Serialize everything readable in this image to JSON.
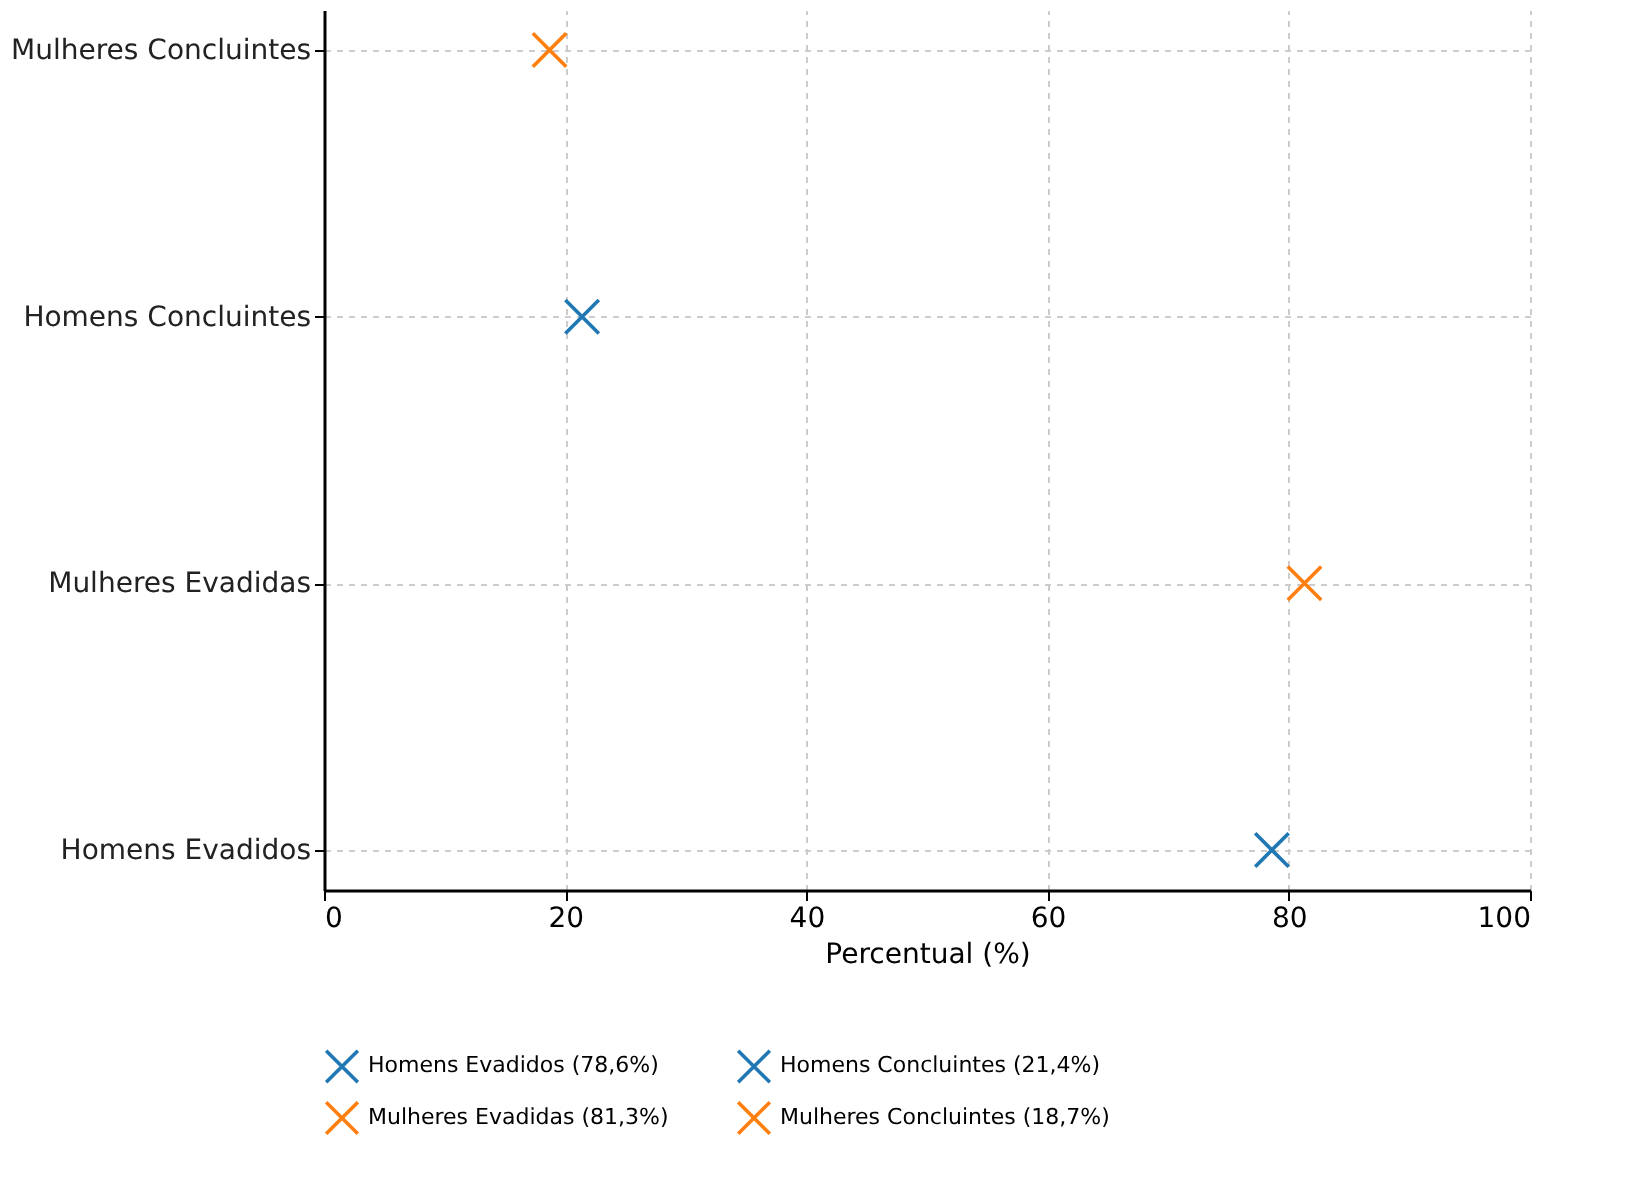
{
  "chart_data": {
    "type": "scatter",
    "orientation": "horizontal",
    "categories": [
      "Mulheres Concluintes",
      "Homens Concluintes",
      "Mulheres Evadidas",
      "Homens Evadidos"
    ],
    "xlabel": "Percentual (%)",
    "xlim": [
      0,
      100
    ],
    "xticks": [
      0,
      20,
      40,
      60,
      80,
      100
    ],
    "grid": true,
    "marker": "cross",
    "legend": "bottom",
    "series": [
      {
        "name": "Homens Evadidos (78,6%)",
        "color": "#1f77b4",
        "values": [
          null,
          null,
          null,
          78.6
        ]
      },
      {
        "name": "Homens Concluintes (21,4%)",
        "color": "#1f77b4",
        "values": [
          null,
          21.4,
          null,
          null
        ]
      },
      {
        "name": "Mulheres Evadidas (81,3%)",
        "color": "#ff7f0e",
        "values": [
          null,
          null,
          81.3,
          null
        ]
      },
      {
        "name": "Mulheres Concluintes (18,7%)",
        "color": "#ff7f0e",
        "values": [
          18.7,
          null,
          null,
          null
        ]
      }
    ]
  }
}
